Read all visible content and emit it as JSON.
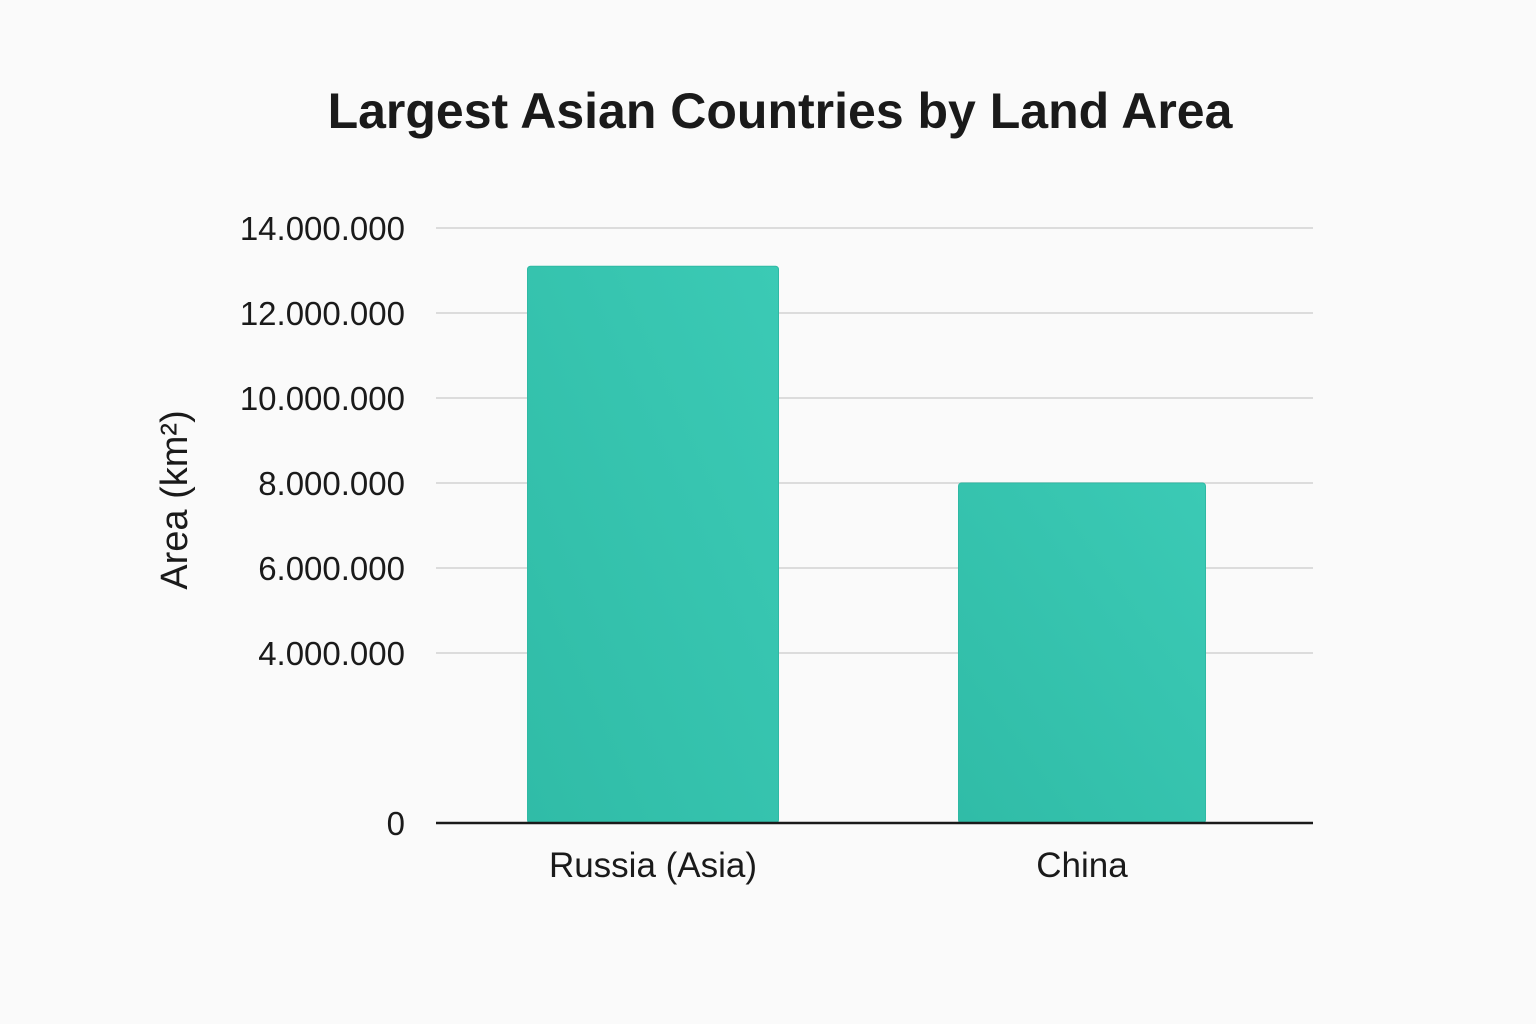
{
  "chart_data": {
    "type": "bar",
    "title": "Largest Asian Countries by Land Area",
    "xlabel": "",
    "ylabel": "Area (km²)",
    "categories": [
      "Russia (Asia)",
      "China"
    ],
    "values": [
      13100000,
      8000000
    ],
    "ylim": [
      0,
      14000000
    ],
    "yticks": [
      0,
      4000000,
      6000000,
      8000000,
      10000000,
      12000000,
      14000000
    ],
    "ytick_labels": [
      "0",
      "4.000.000",
      "6.000.000",
      "8.000.000",
      "10.000.000",
      "12.000.000",
      "14.000.000"
    ],
    "grid": true,
    "legend": "none",
    "colors": {
      "bar": "#38c7b2",
      "bar_edge": "#2fb9a4",
      "grid": "#dcdcdc",
      "axis": "#1a1a1a",
      "background": "#fafafa"
    }
  }
}
